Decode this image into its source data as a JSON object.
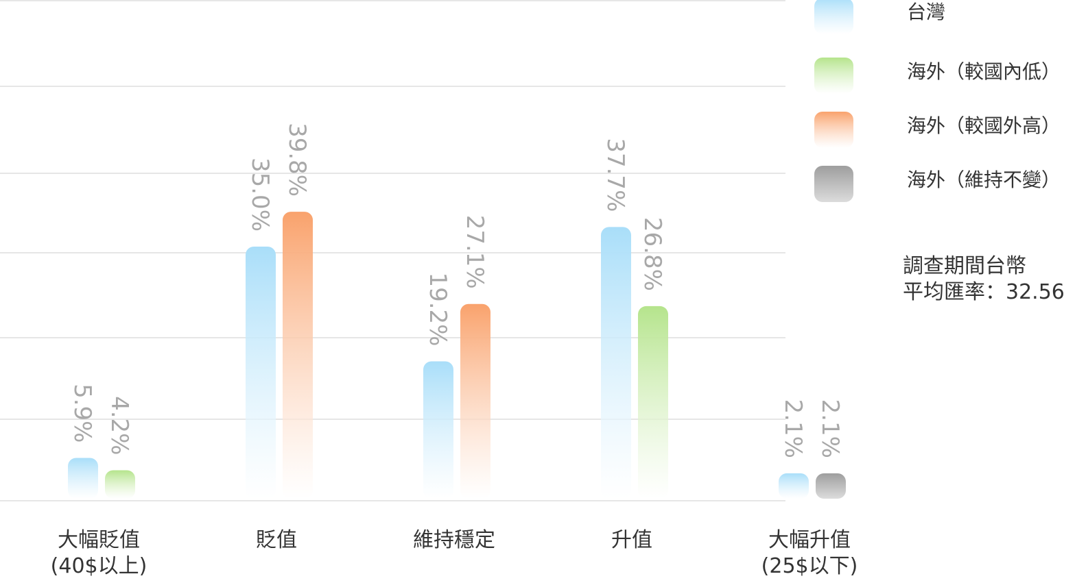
{
  "chart_data": {
    "type": "bar",
    "title": "",
    "xlabel": "",
    "ylabel": "",
    "ylim": [
      0,
      48
    ],
    "grid": true,
    "legend_position": "top-right",
    "value_unit": "%",
    "categories": [
      {
        "line1": "大幅貶值",
        "line2": "(40$以上)"
      },
      {
        "line1": "貶值",
        "line2": ""
      },
      {
        "line1": "維持穩定",
        "line2": ""
      },
      {
        "line1": "升值",
        "line2": ""
      },
      {
        "line1": "大幅升值",
        "line2": "(25$以下)"
      }
    ],
    "series": [
      {
        "name": "台灣",
        "color": "#a9def9"
      },
      {
        "name": "海外（較國內低）",
        "color": "#b5e48c"
      },
      {
        "name": "海外（較國外高）",
        "color": "#f9a26c"
      },
      {
        "name": "海外（維持不變）",
        "color": "#9e9e9e"
      }
    ],
    "bars": [
      [
        {
          "series": 0,
          "value": 5.9,
          "label": "5.9%"
        },
        {
          "series": 1,
          "value": 4.2,
          "label": "4.2%"
        }
      ],
      [
        {
          "series": 0,
          "value": 35.0,
          "label": "35.0%"
        },
        {
          "series": 2,
          "value": 39.8,
          "label": "39.8%"
        }
      ],
      [
        {
          "series": 0,
          "value": 19.2,
          "label": "19.2%"
        },
        {
          "series": 2,
          "value": 27.1,
          "label": "27.1%"
        }
      ],
      [
        {
          "series": 0,
          "value": 37.7,
          "label": "37.7%"
        },
        {
          "series": 1,
          "value": 26.8,
          "label": "26.8%"
        }
      ],
      [
        {
          "series": 0,
          "value": 2.1,
          "label": "2.1%"
        },
        {
          "series": 3,
          "value": 2.1,
          "label": "2.1%"
        }
      ]
    ],
    "note": {
      "line1": "調查期間台幣",
      "line2": "平均匯率：32.56"
    }
  }
}
